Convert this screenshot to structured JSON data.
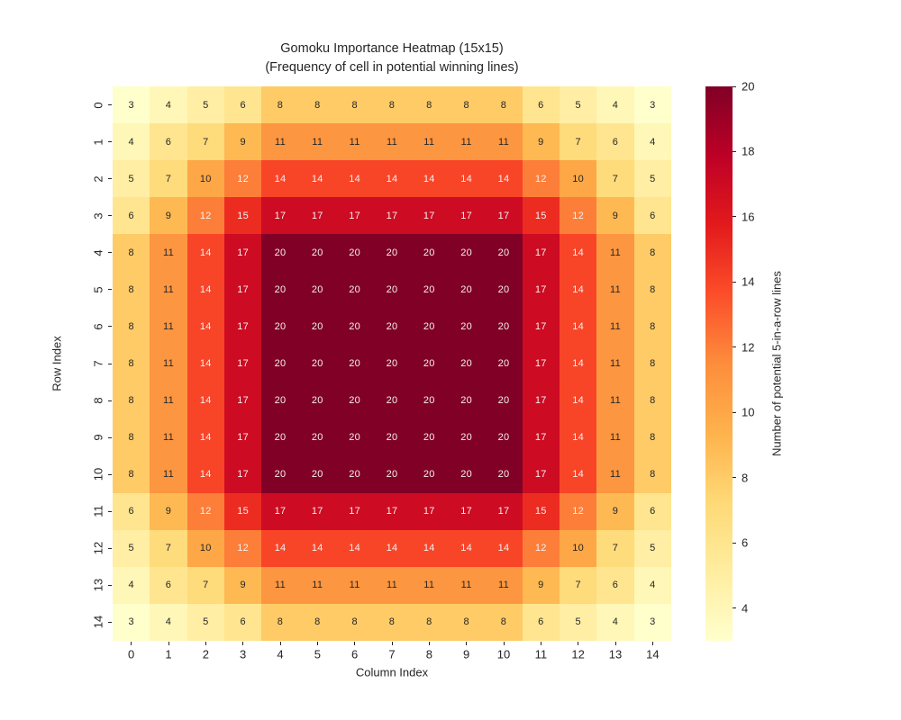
{
  "title": {
    "line1": "Gomoku Importance Heatmap (15x15)",
    "line2": "(Frequency of cell in potential winning lines)"
  },
  "axes": {
    "xlabel": "Column Index",
    "ylabel": "Row Index",
    "x_ticks": [
      "0",
      "1",
      "2",
      "3",
      "4",
      "5",
      "6",
      "7",
      "8",
      "9",
      "10",
      "11",
      "12",
      "13",
      "14"
    ],
    "y_ticks": [
      "0",
      "1",
      "2",
      "3",
      "4",
      "5",
      "6",
      "7",
      "8",
      "9",
      "10",
      "11",
      "12",
      "13",
      "14"
    ]
  },
  "colorbar": {
    "label": "Number of potential 5-in-a-row lines",
    "ticks": [
      4,
      6,
      8,
      10,
      12,
      14,
      16,
      18,
      20
    ],
    "vmin": 3,
    "vmax": 20,
    "colormap": [
      "#ffffcc",
      "#ffeda0",
      "#fed976",
      "#feb24c",
      "#fd8d3c",
      "#fc4e2a",
      "#e31a1c",
      "#bd0026",
      "#800026"
    ]
  },
  "colors": {
    "text": "#262626",
    "annot_dark": "#262626",
    "annot_light": "#f5f0f0"
  },
  "chart_data": {
    "type": "heatmap",
    "title": "Gomoku Importance Heatmap (15x15)\n(Frequency of cell in potential winning lines)",
    "xlabel": "Column Index",
    "ylabel": "Row Index",
    "x": [
      0,
      1,
      2,
      3,
      4,
      5,
      6,
      7,
      8,
      9,
      10,
      11,
      12,
      13,
      14
    ],
    "y": [
      0,
      1,
      2,
      3,
      4,
      5,
      6,
      7,
      8,
      9,
      10,
      11,
      12,
      13,
      14
    ],
    "vmin": 3,
    "vmax": 20,
    "annot_white_threshold": 12,
    "rows": [
      [
        3,
        4,
        5,
        6,
        8,
        8,
        8,
        8,
        8,
        8,
        8,
        6,
        5,
        4,
        3
      ],
      [
        4,
        6,
        7,
        9,
        11,
        11,
        11,
        11,
        11,
        11,
        11,
        9,
        7,
        6,
        4
      ],
      [
        5,
        7,
        10,
        12,
        14,
        14,
        14,
        14,
        14,
        14,
        14,
        12,
        10,
        7,
        5
      ],
      [
        6,
        9,
        12,
        15,
        17,
        17,
        17,
        17,
        17,
        17,
        17,
        15,
        12,
        9,
        6
      ],
      [
        8,
        11,
        14,
        17,
        20,
        20,
        20,
        20,
        20,
        20,
        20,
        17,
        14,
        11,
        8
      ],
      [
        8,
        11,
        14,
        17,
        20,
        20,
        20,
        20,
        20,
        20,
        20,
        17,
        14,
        11,
        8
      ],
      [
        8,
        11,
        14,
        17,
        20,
        20,
        20,
        20,
        20,
        20,
        20,
        17,
        14,
        11,
        8
      ],
      [
        8,
        11,
        14,
        17,
        20,
        20,
        20,
        20,
        20,
        20,
        20,
        17,
        14,
        11,
        8
      ],
      [
        8,
        11,
        14,
        17,
        20,
        20,
        20,
        20,
        20,
        20,
        20,
        17,
        14,
        11,
        8
      ],
      [
        8,
        11,
        14,
        17,
        20,
        20,
        20,
        20,
        20,
        20,
        20,
        17,
        14,
        11,
        8
      ],
      [
        8,
        11,
        14,
        17,
        20,
        20,
        20,
        20,
        20,
        20,
        20,
        17,
        14,
        11,
        8
      ],
      [
        6,
        9,
        12,
        15,
        17,
        17,
        17,
        17,
        17,
        17,
        17,
        15,
        12,
        9,
        6
      ],
      [
        5,
        7,
        10,
        12,
        14,
        14,
        14,
        14,
        14,
        14,
        14,
        12,
        10,
        7,
        5
      ],
      [
        4,
        6,
        7,
        9,
        11,
        11,
        11,
        11,
        11,
        11,
        11,
        9,
        7,
        6,
        4
      ],
      [
        3,
        4,
        5,
        6,
        8,
        8,
        8,
        8,
        8,
        8,
        8,
        6,
        5,
        4,
        3
      ]
    ]
  }
}
